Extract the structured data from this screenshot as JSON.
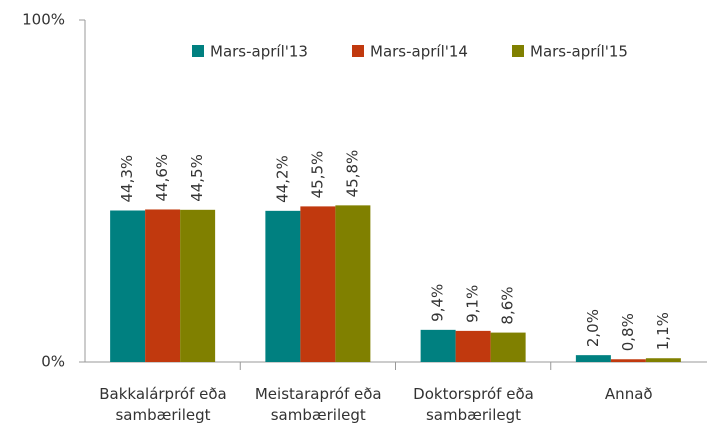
{
  "chart_data": {
    "type": "bar",
    "categories": [
      "Bakkalárpróf eða sambærilegt",
      "Meistarapróf eða sambærilegt",
      "Doktorspróf eða sambærilegt",
      "Annað"
    ],
    "series": [
      {
        "name": "Mars-apríl'13",
        "color": "#008080",
        "values": [
          44.3,
          44.2,
          9.4,
          2.0
        ],
        "value_labels": [
          "44,3%",
          "44,2%",
          "9,4%",
          "2,0%"
        ]
      },
      {
        "name": "Mars-apríl'14",
        "color": "#c1390e",
        "values": [
          44.6,
          45.5,
          9.1,
          0.8
        ],
        "value_labels": [
          "44,6%",
          "45,5%",
          "9,1%",
          "0,8%"
        ]
      },
      {
        "name": "Mars-apríl'15",
        "color": "#808000",
        "values": [
          44.5,
          45.8,
          8.6,
          1.1
        ],
        "value_labels": [
          "44,5%",
          "45,8%",
          "8,6%",
          "1,1%"
        ]
      }
    ],
    "ylim": [
      0,
      100
    ],
    "yticks": [
      {
        "value": 0,
        "label": "0%"
      },
      {
        "value": 100,
        "label": "100%"
      }
    ],
    "legend": "top"
  }
}
